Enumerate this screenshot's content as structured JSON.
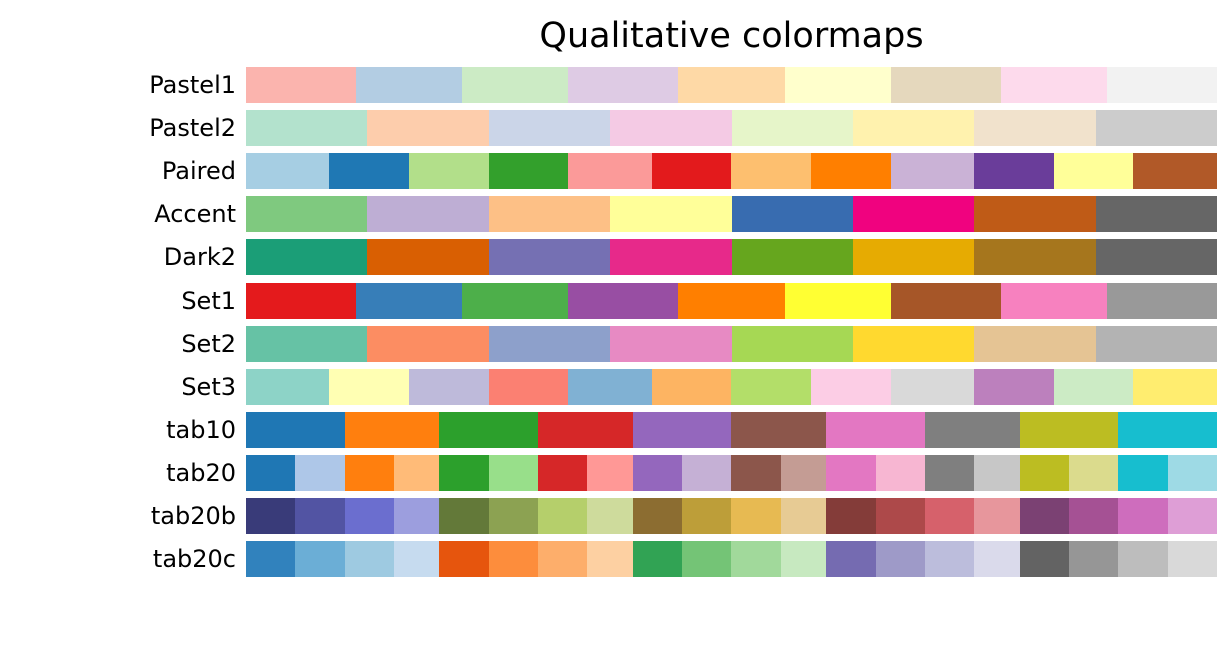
{
  "chart_data": {
    "type": "heatmap",
    "title": "Qualitative colormaps",
    "axes_visible": false,
    "colormaps": [
      {
        "name": "Pastel1",
        "colors": [
          "#fbb4ae",
          "#b3cde3",
          "#ccebc5",
          "#decbe4",
          "#fed9a6",
          "#ffffcc",
          "#e5d8bd",
          "#fddaec",
          "#f2f2f2"
        ]
      },
      {
        "name": "Pastel2",
        "colors": [
          "#b3e2cd",
          "#fdcdac",
          "#cbd5e8",
          "#f4cae4",
          "#e6f5c9",
          "#fff2ae",
          "#f1e2cc",
          "#cccccc"
        ]
      },
      {
        "name": "Paired",
        "colors": [
          "#a6cee3",
          "#1f78b4",
          "#b2df8a",
          "#33a02c",
          "#fb9a99",
          "#e31a1c",
          "#fdbf6f",
          "#ff7f00",
          "#cab2d6",
          "#6a3d9a",
          "#ffff99",
          "#b15928"
        ]
      },
      {
        "name": "Accent",
        "colors": [
          "#7fc97f",
          "#beaed4",
          "#fdc086",
          "#ffff99",
          "#386cb0",
          "#f0027f",
          "#bf5b17",
          "#666666"
        ]
      },
      {
        "name": "Dark2",
        "colors": [
          "#1b9e77",
          "#d95f02",
          "#7570b3",
          "#e7298a",
          "#66a61e",
          "#e6ab02",
          "#a6761d",
          "#666666"
        ]
      },
      {
        "name": "Set1",
        "colors": [
          "#e41a1c",
          "#377eb8",
          "#4daf4a",
          "#984ea3",
          "#ff7f00",
          "#ffff33",
          "#a65628",
          "#f781bf",
          "#999999"
        ]
      },
      {
        "name": "Set2",
        "colors": [
          "#66c2a5",
          "#fc8d62",
          "#8da0cb",
          "#e78ac3",
          "#a6d854",
          "#ffd92f",
          "#e5c494",
          "#b3b3b3"
        ]
      },
      {
        "name": "Set3",
        "colors": [
          "#8dd3c7",
          "#ffffb3",
          "#bebada",
          "#fb8072",
          "#80b1d3",
          "#fdb462",
          "#b3de69",
          "#fccde5",
          "#d9d9d9",
          "#bc80bd",
          "#ccebc5",
          "#ffed6f"
        ]
      },
      {
        "name": "tab10",
        "colors": [
          "#1f77b4",
          "#ff7f0e",
          "#2ca02c",
          "#d62728",
          "#9467bd",
          "#8c564b",
          "#e377c2",
          "#7f7f7f",
          "#bcbd22",
          "#17becf"
        ]
      },
      {
        "name": "tab20",
        "colors": [
          "#1f77b4",
          "#aec7e8",
          "#ff7f0e",
          "#ffbb78",
          "#2ca02c",
          "#98df8a",
          "#d62728",
          "#ff9896",
          "#9467bd",
          "#c5b0d5",
          "#8c564b",
          "#c49c94",
          "#e377c2",
          "#f7b6d2",
          "#7f7f7f",
          "#c7c7c7",
          "#bcbd22",
          "#dbdb8d",
          "#17becf",
          "#9edae5"
        ]
      },
      {
        "name": "tab20b",
        "colors": [
          "#393b79",
          "#5254a3",
          "#6b6ecf",
          "#9c9ede",
          "#637939",
          "#8ca252",
          "#b5cf6b",
          "#cedb9c",
          "#8c6d31",
          "#bd9e39",
          "#e7ba52",
          "#e7cb94",
          "#843c39",
          "#ad494a",
          "#d6616b",
          "#e7969c",
          "#7b4173",
          "#a55194",
          "#ce6dbd",
          "#de9ed6"
        ]
      },
      {
        "name": "tab20c",
        "colors": [
          "#3182bd",
          "#6baed6",
          "#9ecae1",
          "#c6dbef",
          "#e6550d",
          "#fd8d3c",
          "#fdae6b",
          "#fdd0a2",
          "#31a354",
          "#74c476",
          "#a1d99b",
          "#c7e9c0",
          "#756bb1",
          "#9e9ac8",
          "#bcbddc",
          "#dadaeb",
          "#636363",
          "#969696",
          "#bdbdbd",
          "#d9d9d9"
        ]
      }
    ]
  }
}
